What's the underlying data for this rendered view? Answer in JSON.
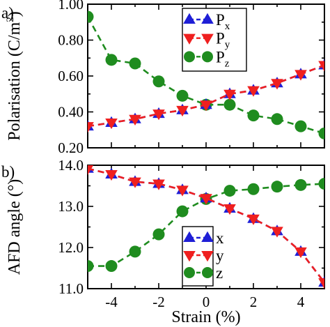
{
  "chart_data": [
    {
      "type": "line",
      "panel_label": "a)",
      "title": "",
      "xlabel": "",
      "ylabel": "Polarisation (C/m",
      "ylabel_superscript": "2",
      "ylabel_close": ")",
      "xlim": [
        -5,
        5
      ],
      "ylim": [
        0.2,
        1.0
      ],
      "x_ticks": [
        -4,
        -2,
        0,
        2,
        4
      ],
      "y_ticks": [
        0.2,
        0.4,
        0.6,
        0.8,
        1.0
      ],
      "y_tick_labels": [
        "0.20",
        "0.40",
        "0.60",
        "0.80",
        "1.00"
      ],
      "grid": false,
      "legend_position": "top-right",
      "series": [
        {
          "name": "P",
          "name_sub": "x",
          "color": "#1f1fd6",
          "marker": "triangle-up",
          "x": [
            -5,
            -4,
            -3,
            -2,
            -1,
            0,
            1,
            2,
            3,
            4,
            5
          ],
          "y": [
            0.32,
            0.34,
            0.36,
            0.39,
            0.41,
            0.44,
            0.5,
            0.52,
            0.56,
            0.61,
            0.66
          ]
        },
        {
          "name": "P",
          "name_sub": "y",
          "color": "#ef1f1f",
          "marker": "triangle-down",
          "x": [
            -5,
            -4,
            -3,
            -2,
            -1,
            0,
            1,
            2,
            3,
            4,
            5
          ],
          "y": [
            0.32,
            0.34,
            0.36,
            0.39,
            0.41,
            0.44,
            0.5,
            0.52,
            0.56,
            0.61,
            0.66
          ]
        },
        {
          "name": "P",
          "name_sub": "z",
          "color": "#1f8c1f",
          "marker": "circle",
          "x": [
            -5,
            -4,
            -3,
            -2,
            -1,
            0,
            1,
            2,
            3,
            4,
            5
          ],
          "y": [
            0.93,
            0.69,
            0.67,
            0.57,
            0.49,
            0.44,
            0.44,
            0.38,
            0.36,
            0.32,
            0.28
          ]
        }
      ]
    },
    {
      "type": "line",
      "panel_label": "b)",
      "title": "",
      "xlabel": "Strain (%)",
      "ylabel": "AFD angle (°)",
      "xlim": [
        -5,
        5
      ],
      "ylim": [
        11.0,
        14.0
      ],
      "x_ticks": [
        -4,
        -2,
        0,
        2,
        4
      ],
      "x_tick_labels": [
        "-4",
        "-2",
        "0",
        "2",
        "4"
      ],
      "y_ticks": [
        11.0,
        12.0,
        13.0,
        14.0
      ],
      "y_tick_labels": [
        "11.0",
        "12.0",
        "13.0",
        "14.0"
      ],
      "grid": false,
      "legend_position": "bottom-center",
      "series": [
        {
          "name": "x",
          "color": "#1f1fd6",
          "marker": "triangle-up",
          "x": [
            -5,
            -4,
            -3,
            -2,
            -1,
            0,
            1,
            2,
            3,
            4,
            5
          ],
          "y": [
            13.92,
            13.78,
            13.6,
            13.55,
            13.4,
            13.2,
            12.95,
            12.7,
            12.4,
            11.9,
            11.15
          ]
        },
        {
          "name": "y",
          "color": "#ef1f1f",
          "marker": "triangle-down",
          "x": [
            -5,
            -4,
            -3,
            -2,
            -1,
            0,
            1,
            2,
            3,
            4,
            5
          ],
          "y": [
            13.92,
            13.78,
            13.6,
            13.55,
            13.4,
            13.2,
            12.95,
            12.7,
            12.4,
            11.9,
            11.15
          ]
        },
        {
          "name": "z",
          "color": "#1f8c1f",
          "marker": "circle",
          "x": [
            -5,
            -4,
            -3,
            -2,
            -1,
            0,
            1,
            2,
            3,
            4,
            5
          ],
          "y": [
            11.55,
            11.55,
            11.9,
            12.32,
            12.88,
            13.18,
            13.38,
            13.42,
            13.48,
            13.52,
            13.55
          ]
        }
      ]
    }
  ]
}
